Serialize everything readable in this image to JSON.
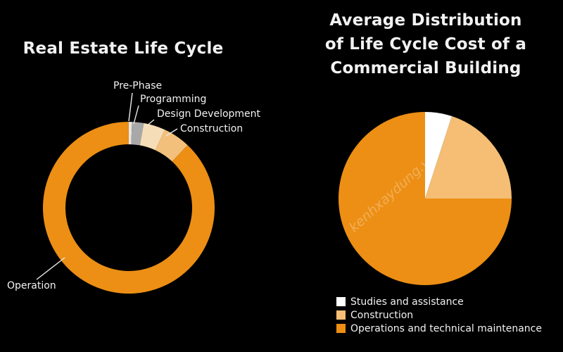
{
  "chart_data": [
    {
      "type": "donut",
      "title": "Real Estate Life Cycle",
      "categories": [
        "Pre-Phase",
        "Programming",
        "Design Development",
        "Construction",
        "Operation"
      ],
      "values": [
        0.6,
        2.2,
        4.1,
        5.1,
        88.0
      ],
      "colors": [
        "#e6e6e6",
        "#a8a8a8",
        "#f5ddb8",
        "#f2c07a",
        "#ec8f14"
      ],
      "legend": "none"
    },
    {
      "type": "pie",
      "title_lines": [
        "Average Distribution",
        "of Life Cycle Cost of a",
        "Commercial Building"
      ],
      "categories": [
        "Studies and assistance",
        "Construction",
        "Operations and technical maintenance"
      ],
      "values": [
        5,
        20,
        75
      ],
      "colors": [
        "#ffffff",
        "#f5be74",
        "#ec8f14"
      ],
      "legend": "bottom-left"
    }
  ],
  "watermark": "kenhxaydung.vn"
}
